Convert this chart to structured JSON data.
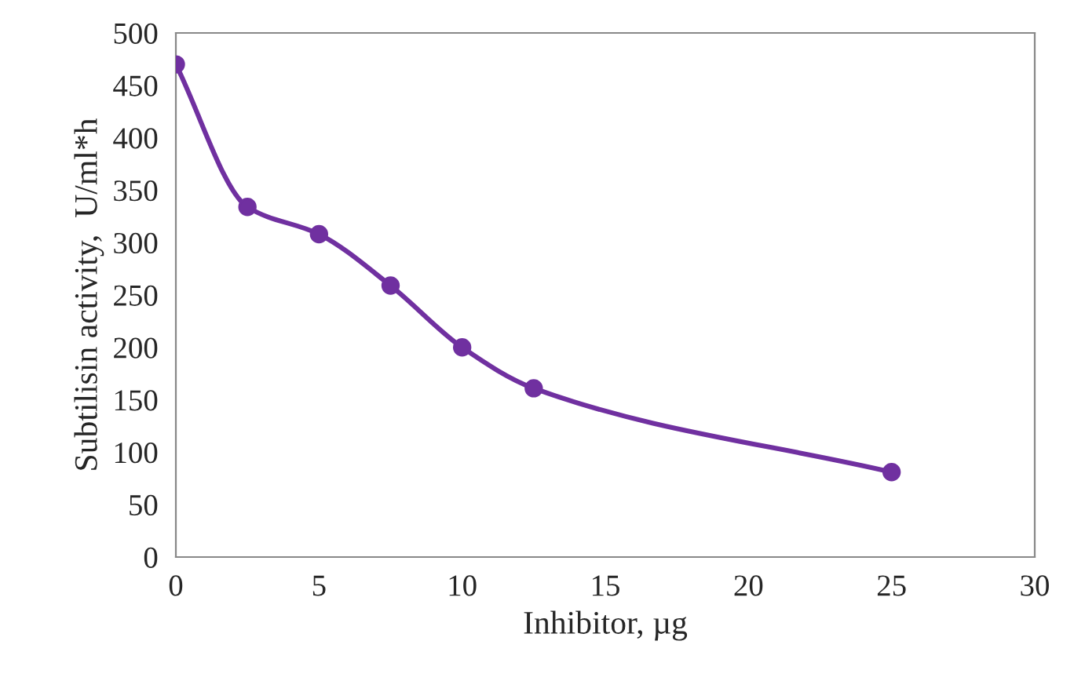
{
  "chart_data": {
    "type": "line",
    "xlabel": "Inhibitor, µg",
    "ylabel": "Subtilisin activity,  U/ml*h",
    "x": [
      0,
      2.5,
      5,
      7.5,
      10,
      12.5,
      25
    ],
    "series": [
      {
        "color": "#7030a0",
        "values": [
          470,
          334,
          308,
          259,
          200,
          161,
          81
        ]
      }
    ],
    "xlim": [
      0,
      30
    ],
    "xticks": [
      0,
      5,
      10,
      15,
      20,
      25,
      30
    ],
    "ylim": [
      0,
      500
    ],
    "yticks": [
      0,
      50,
      100,
      150,
      200,
      250,
      300,
      350,
      400,
      450,
      500
    ],
    "grid": false,
    "legend": false,
    "marker": "circle",
    "line_style": "solid"
  }
}
